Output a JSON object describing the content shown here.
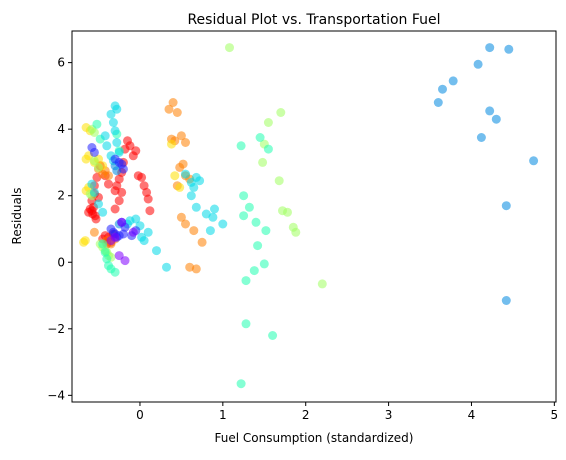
{
  "chart_data": {
    "type": "scatter",
    "title": "Residual Plot vs. Transportation Fuel",
    "xlabel": "Fuel Consumption (standardized)",
    "ylabel": "Residuals",
    "xlim": [
      -0.82,
      5.02
    ],
    "ylim": [
      -4.2,
      6.95
    ],
    "xticks": [
      0,
      1,
      2,
      3,
      4,
      5
    ],
    "yticks": [
      -4,
      -2,
      0,
      2,
      4,
      6
    ],
    "grid": false,
    "marker_opacity": 0.55,
    "groups": [
      {
        "color": "#ff0000",
        "points": [
          [
            -0.58,
            1.85
          ],
          [
            -0.55,
            2.05
          ],
          [
            -0.6,
            1.6
          ],
          [
            -0.57,
            1.45
          ],
          [
            -0.53,
            1.3
          ],
          [
            -0.62,
            1.5
          ],
          [
            -0.55,
            2.3
          ],
          [
            -0.52,
            2.55
          ],
          [
            -0.48,
            2.9
          ],
          [
            -0.42,
            2.6
          ],
          [
            -0.38,
            2.35
          ],
          [
            -0.3,
            2.15
          ],
          [
            -0.28,
            2.3
          ],
          [
            -0.25,
            2.5
          ],
          [
            -0.22,
            2.7
          ],
          [
            -0.2,
            3.0
          ],
          [
            -0.18,
            3.4
          ],
          [
            -0.15,
            3.65
          ],
          [
            -0.12,
            3.5
          ],
          [
            -0.08,
            3.2
          ],
          [
            -0.05,
            3.35
          ],
          [
            -0.02,
            2.6
          ],
          [
            0.02,
            2.55
          ],
          [
            0.05,
            2.3
          ],
          [
            0.08,
            2.1
          ],
          [
            0.1,
            1.9
          ],
          [
            0.12,
            1.55
          ],
          [
            -0.25,
            1.85
          ],
          [
            -0.22,
            2.1
          ],
          [
            -0.3,
            1.6
          ],
          [
            -0.58,
            1.55
          ],
          [
            -0.56,
            1.65
          ],
          [
            -0.54,
            1.4
          ],
          [
            -0.5,
            1.95
          ],
          [
            -0.45,
            0.7
          ],
          [
            -0.42,
            0.8
          ],
          [
            -0.38,
            0.75
          ],
          [
            -0.35,
            0.6
          ],
          [
            -0.4,
            0.55
          ],
          [
            -0.32,
            0.85
          ]
        ]
      },
      {
        "color": "#ff8000",
        "points": [
          [
            0.35,
            4.6
          ],
          [
            0.4,
            4.8
          ],
          [
            0.45,
            4.5
          ],
          [
            0.5,
            3.8
          ],
          [
            0.55,
            3.6
          ],
          [
            0.38,
            3.7
          ],
          [
            0.42,
            3.65
          ],
          [
            0.48,
            2.85
          ],
          [
            0.52,
            2.95
          ],
          [
            0.55,
            2.6
          ],
          [
            0.45,
            2.3
          ],
          [
            0.6,
            2.5
          ],
          [
            0.5,
            1.35
          ],
          [
            0.55,
            1.15
          ],
          [
            0.65,
            0.95
          ],
          [
            0.75,
            0.6
          ],
          [
            0.6,
            -0.15
          ],
          [
            0.68,
            -0.2
          ],
          [
            -0.45,
            2.65
          ],
          [
            -0.42,
            2.75
          ],
          [
            -0.38,
            2.6
          ],
          [
            -0.5,
            2.8
          ],
          [
            -0.4,
            0.65
          ],
          [
            -0.35,
            0.55
          ],
          [
            -0.3,
            0.7
          ],
          [
            -0.55,
            0.9
          ]
        ]
      },
      {
        "color": "#ffe000",
        "points": [
          [
            -0.65,
            4.05
          ],
          [
            -0.6,
            3.95
          ],
          [
            -0.62,
            3.2
          ],
          [
            -0.65,
            3.1
          ],
          [
            -0.62,
            2.25
          ],
          [
            -0.65,
            2.15
          ],
          [
            -0.68,
            0.6
          ],
          [
            -0.66,
            0.65
          ],
          [
            -0.55,
            3.0
          ],
          [
            -0.5,
            3.1
          ],
          [
            -0.45,
            2.9
          ],
          [
            0.42,
            2.6
          ],
          [
            0.48,
            2.25
          ],
          [
            0.38,
            3.55
          ]
        ]
      },
      {
        "color": "#a0ff60",
        "points": [
          [
            -0.58,
            4.0
          ],
          [
            -0.55,
            3.9
          ],
          [
            -0.6,
            2.05
          ],
          [
            -0.58,
            2.0
          ],
          [
            -0.55,
            3.05
          ],
          [
            -0.5,
            2.85
          ],
          [
            -0.48,
            0.55
          ],
          [
            -0.45,
            0.45
          ],
          [
            -0.42,
            0.35
          ],
          [
            -0.4,
            0.3
          ],
          [
            -0.38,
            0.2
          ],
          [
            -0.35,
            0.15
          ],
          [
            1.55,
            4.2
          ],
          [
            1.5,
            3.55
          ],
          [
            1.48,
            3.0
          ],
          [
            1.7,
            4.5
          ],
          [
            1.68,
            2.45
          ],
          [
            1.72,
            1.55
          ],
          [
            1.78,
            1.5
          ],
          [
            1.85,
            1.05
          ],
          [
            1.88,
            0.9
          ],
          [
            2.2,
            -0.65
          ],
          [
            1.08,
            6.45
          ]
        ]
      },
      {
        "color": "#20ffb0",
        "points": [
          [
            -0.52,
            4.15
          ],
          [
            -0.48,
            3.7
          ],
          [
            -0.45,
            0.55
          ],
          [
            -0.42,
            0.3
          ],
          [
            -0.4,
            0.1
          ],
          [
            -0.38,
            -0.1
          ],
          [
            -0.35,
            -0.2
          ],
          [
            -0.3,
            -0.3
          ],
          [
            -0.28,
            3.85
          ],
          [
            -0.25,
            3.35
          ],
          [
            1.22,
            3.5
          ],
          [
            1.25,
            2.0
          ],
          [
            1.32,
            1.65
          ],
          [
            1.25,
            1.4
          ],
          [
            1.4,
            1.2
          ],
          [
            1.45,
            3.75
          ],
          [
            1.42,
            0.5
          ],
          [
            1.55,
            3.4
          ],
          [
            1.52,
            0.95
          ],
          [
            1.5,
            -0.05
          ],
          [
            1.38,
            -0.25
          ],
          [
            1.6,
            -2.2
          ],
          [
            1.28,
            -0.55
          ],
          [
            1.22,
            -3.65
          ],
          [
            1.28,
            -1.85
          ]
        ]
      },
      {
        "color": "#00d8e8",
        "points": [
          [
            -0.35,
            4.45
          ],
          [
            -0.3,
            4.7
          ],
          [
            -0.28,
            4.6
          ],
          [
            -0.32,
            4.2
          ],
          [
            -0.3,
            3.95
          ],
          [
            -0.28,
            3.6
          ],
          [
            -0.25,
            3.3
          ],
          [
            -0.42,
            3.8
          ],
          [
            -0.4,
            3.5
          ],
          [
            -0.35,
            3.2
          ],
          [
            -0.32,
            3.05
          ],
          [
            -0.58,
            2.35
          ],
          [
            -0.55,
            2.1
          ],
          [
            -0.5,
            1.75
          ],
          [
            -0.45,
            1.5
          ],
          [
            -0.15,
            1.15
          ],
          [
            -0.12,
            1.25
          ],
          [
            -0.05,
            1.3
          ],
          [
            0.0,
            1.1
          ],
          [
            0.02,
            0.75
          ],
          [
            0.05,
            0.65
          ],
          [
            0.1,
            0.9
          ],
          [
            0.2,
            0.35
          ],
          [
            0.32,
            -0.15
          ],
          [
            0.55,
            2.65
          ],
          [
            0.62,
            2.4
          ],
          [
            0.68,
            2.55
          ],
          [
            0.72,
            2.45
          ],
          [
            0.65,
            2.25
          ],
          [
            0.62,
            2.0
          ],
          [
            0.68,
            1.65
          ],
          [
            0.8,
            1.45
          ],
          [
            0.88,
            1.35
          ],
          [
            0.85,
            0.95
          ],
          [
            0.9,
            1.6
          ],
          [
            1.0,
            1.15
          ]
        ]
      },
      {
        "color": "#0088e0",
        "points": [
          [
            3.6,
            4.8
          ],
          [
            3.65,
            5.2
          ],
          [
            3.78,
            5.45
          ],
          [
            4.08,
            5.95
          ],
          [
            4.22,
            6.45
          ],
          [
            4.45,
            6.4
          ],
          [
            4.22,
            4.55
          ],
          [
            4.3,
            4.3
          ],
          [
            4.12,
            3.75
          ],
          [
            4.75,
            3.05
          ],
          [
            4.42,
            1.7
          ],
          [
            4.42,
            -1.15
          ],
          [
            -0.3,
            2.9
          ],
          [
            -0.28,
            2.75
          ],
          [
            -0.25,
            1.15
          ]
        ]
      },
      {
        "color": "#2020ff",
        "points": [
          [
            -0.58,
            3.45
          ],
          [
            -0.55,
            3.3
          ],
          [
            -0.3,
            3.1
          ],
          [
            -0.25,
            3.0
          ],
          [
            -0.22,
            2.95
          ],
          [
            -0.2,
            2.8
          ],
          [
            -0.35,
            1.0
          ],
          [
            -0.32,
            0.9
          ],
          [
            -0.3,
            0.85
          ],
          [
            -0.28,
            0.75
          ],
          [
            -0.25,
            0.8
          ],
          [
            -0.2,
            0.85
          ],
          [
            -0.22,
            1.2
          ],
          [
            -0.18,
            1.05
          ],
          [
            -0.1,
            0.8
          ],
          [
            -0.05,
            0.95
          ]
        ]
      },
      {
        "color": "#8000ff",
        "points": [
          [
            -0.25,
            0.2
          ],
          [
            -0.18,
            0.05
          ],
          [
            -0.35,
            0.65
          ],
          [
            -0.3,
            0.75
          ],
          [
            -0.08,
            0.9
          ],
          [
            -0.22,
            1.2
          ]
        ]
      }
    ]
  }
}
